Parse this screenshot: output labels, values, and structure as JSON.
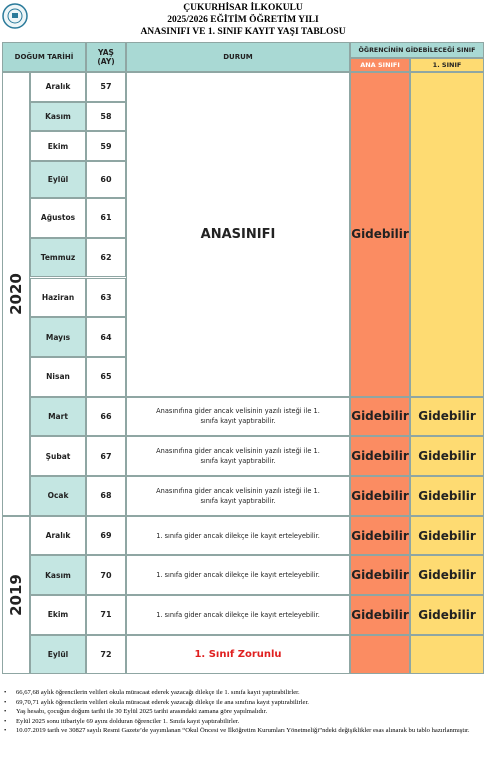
{
  "header": {
    "lines": [
      "ÇUKURHİSAR İLKOKULU",
      "2025/2026 EĞİTİM ÖĞRETİM YILI",
      "ANASINIFI VE 1. SINIF KAYIT YAŞI TABLOSU"
    ]
  },
  "table": {
    "columns": {
      "birth": "DOĞUM TARİHİ",
      "age": "YAŞ (AY)",
      "status": "DURUM",
      "class_group": "ÖĞRENCİNİN GİDEBİLECEĞİ SINIF",
      "kindergarten": "ANA SINIFI",
      "first_grade": "1. SINIF"
    },
    "merged": {
      "status": "ANASINIFI",
      "kindergarten": "Gidebilir"
    },
    "years": [
      {
        "label": "2020",
        "rows": [
          {
            "month": "Aralık",
            "age": 57
          },
          {
            "month": "Kasım",
            "age": 58
          },
          {
            "month": "Ekim",
            "age": 59
          },
          {
            "month": "Eylül",
            "age": 60
          },
          {
            "month": "Ağustos",
            "age": 61
          },
          {
            "month": "Temmuz",
            "age": 62
          },
          {
            "month": "Haziran",
            "age": 63
          },
          {
            "month": "Mayıs",
            "age": 64
          },
          {
            "month": "Nisan",
            "age": 65
          },
          {
            "month": "Mart",
            "age": 66,
            "status": "Anasınıfına gider ancak velisinin yazılı isteği ile  1. sınıfa kayıt yaptırabilir.",
            "kindergarten": "Gidebilir",
            "first_grade": "Gidebilir"
          },
          {
            "month": "Şubat",
            "age": 67,
            "status": "Anasınıfına gider ancak velisinin yazılı isteği ile  1. sınıfa kayıt yaptırabilir.",
            "kindergarten": "Gidebilir",
            "first_grade": "Gidebilir"
          },
          {
            "month": "Ocak",
            "age": 68,
            "status": "Anasınıfına gider ancak velisinin yazılı isteği ile  1. sınıfa kayıt  yaptırabilir.",
            "kindergarten": "Gidebilir",
            "first_grade": "Gidebilir"
          }
        ]
      },
      {
        "label": "2019",
        "rows": [
          {
            "month": "Aralık",
            "age": 69,
            "status": "1. sınıfa gider ancak dilekçe ile kayıt erteleyebilir.",
            "kindergarten": "Gidebilir",
            "first_grade": "Gidebilir"
          },
          {
            "month": "Kasım",
            "age": 70,
            "status": "1. sınıfa gider ancak dilekçe ile kayıt erteleyebilir.",
            "kindergarten": "Gidebilir",
            "first_grade": "Gidebilir"
          },
          {
            "month": "Ekim",
            "age": 71,
            "status": "1. sınıfa gider ancak dilekçe ile kayıt erteleyebilir.",
            "kindergarten": "Gidebilir",
            "first_grade": "Gidebilir"
          },
          {
            "month": "Eylül",
            "age": 72,
            "status": "1. Sınıf Zorunlu"
          }
        ]
      }
    ]
  },
  "notes": [
    "66,67,68 aylık öğrencilerin velileri okula müracaat ederek yazacağı dilekçe ile 1. sınıfa kayıt yaptırabilirler.",
    "69,70,71 aylık öğrencilerin velileri okula müracaat ederek yazacağı dilekçe ile ana sınıfına kayıt yaptırabilirler.",
    "Yaş hesabı, çocuğun doğum tarihi ile 30 Eylül 2025 tarihi arasındaki zamana göre yapılmalıdır.",
    "Eylül 2025 sonu itibariyle 69 ayını dolduran öğrenciler 1. Sınıfa kayıt yaptırabilirler.",
    "10.07.2019 tarih ve 30827 sayılı Resmi Gazete’de yayımlanan “Okul Öncesi ve İlköğretim Kurumları Yönetmeliği”ndeki değişiklikler esas alınarak bu tablo hazırlanmıştır."
  ]
}
